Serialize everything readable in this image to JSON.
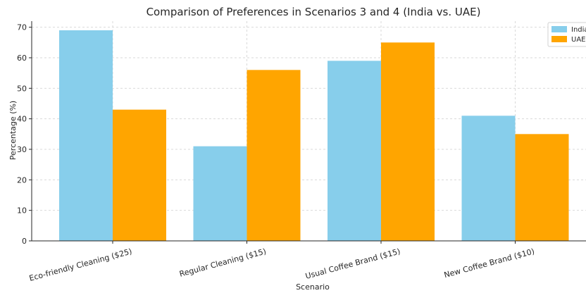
{
  "chart_data": {
    "type": "bar",
    "title": "Comparison of Preferences in Scenarios 3 and 4 (India vs. UAE)",
    "xlabel": "Scenario",
    "ylabel": "Percentage (%)",
    "categories": [
      "Eco-friendly Cleaning ($25)",
      "Regular Cleaning ($15)",
      "Usual Coffee Brand ($15)",
      "New Coffee Brand ($10)"
    ],
    "series": [
      {
        "name": "India",
        "values": [
          69,
          31,
          59,
          41
        ],
        "color": "#87CEEB"
      },
      {
        "name": "UAE",
        "values": [
          43,
          56,
          65,
          35
        ],
        "color": "#FFA500"
      }
    ],
    "ylim": [
      0,
      72
    ],
    "yticks": [
      0,
      10,
      20,
      30,
      40,
      50,
      60,
      70
    ],
    "grid": true,
    "legend_position": "top-right"
  }
}
